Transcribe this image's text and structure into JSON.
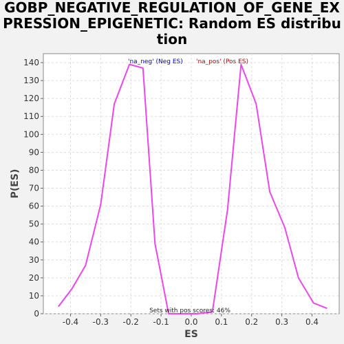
{
  "chart_data": {
    "type": "line",
    "title": "GOBP_NEGATIVE_REGULATION_OF_GENE_EXPRESSION_EPIGENETIC: Random ES distribution",
    "xlabel": "ES",
    "ylabel": "P(ES)",
    "xlim": [
      -0.49,
      0.49
    ],
    "ylim": [
      0,
      145
    ],
    "x_ticks": [
      -0.4,
      -0.3,
      -0.2,
      -0.1,
      0.0,
      0.1,
      0.2,
      0.3,
      0.4
    ],
    "x_tick_labels": [
      "-0.4",
      "-0.3",
      "-0.2",
      "-0.1",
      "0.0",
      "0.1",
      "0.2",
      "0.3",
      "0.4"
    ],
    "y_ticks": [
      0,
      10,
      20,
      30,
      40,
      50,
      60,
      70,
      80,
      90,
      100,
      110,
      120,
      130,
      140
    ],
    "y_tick_labels": [
      "0",
      "10",
      "20",
      "30",
      "40",
      "50",
      "60",
      "70",
      "80",
      "90",
      "100",
      "110",
      "120",
      "130",
      "140"
    ],
    "grid": true,
    "series": [
      {
        "color": "#ee44ee",
        "x": [
          -0.44,
          -0.395,
          -0.35,
          -0.3,
          -0.255,
          -0.205,
          -0.16,
          -0.12,
          -0.075,
          -0.03,
          0.02,
          0.07,
          0.12,
          0.165,
          0.215,
          0.26,
          0.31,
          0.355,
          0.405,
          0.45
        ],
        "y": [
          4,
          14,
          27,
          61,
          117,
          139,
          137,
          39,
          0,
          0,
          0,
          1,
          58,
          139,
          117,
          68,
          48,
          20,
          6,
          3
        ]
      }
    ],
    "legend": {
      "placement": "top-center",
      "entries": [
        {
          "label": "'na_neg' (Neg ES)",
          "color": "#0000cc"
        },
        {
          "label": "'na_pos' (Pos ES)",
          "color": "#cc0000"
        }
      ]
    },
    "annotation": "Sets with pos scores: 46%"
  },
  "colors": {
    "line": "#ee44ee",
    "plot_bg": "#ffffff",
    "page_bg": "#f2f2f2"
  }
}
